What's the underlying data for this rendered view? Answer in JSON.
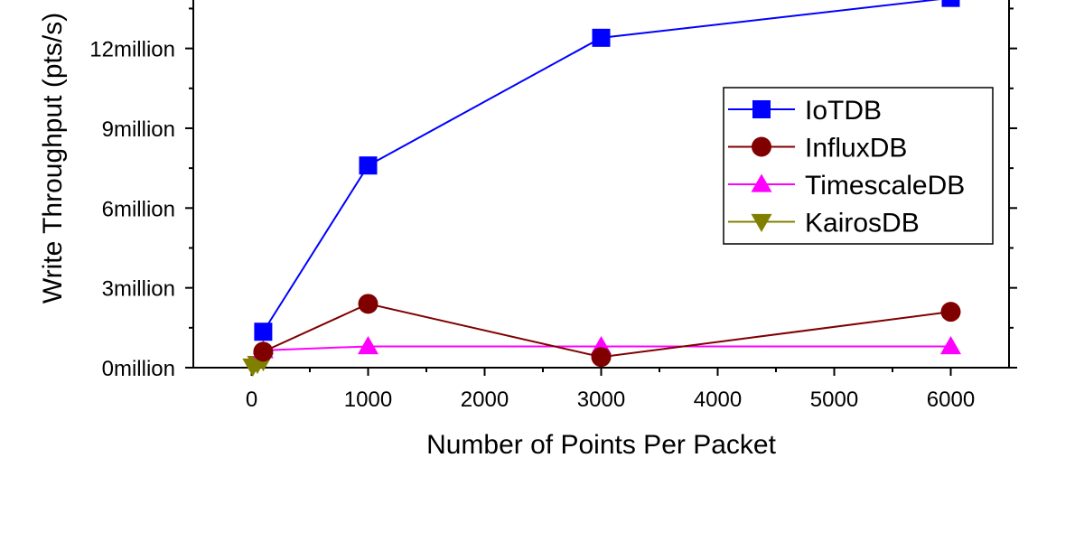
{
  "chart_data": {
    "type": "line",
    "xlabel": "Number of Points Per Packet",
    "ylabel": "Write Throughput (pts/s)",
    "xlim": [
      -500,
      6500
    ],
    "ylim": [
      0,
      14500000
    ],
    "x_ticks": [
      0,
      1000,
      2000,
      3000,
      4000,
      5000,
      6000
    ],
    "x_tick_labels": [
      "0",
      "1000",
      "2000",
      "3000",
      "4000",
      "5000",
      "6000"
    ],
    "y_ticks": [
      0,
      3000000,
      6000000,
      9000000,
      12000000
    ],
    "y_tick_labels": [
      "0million",
      "3million",
      "6million",
      "9million",
      "12million"
    ],
    "legend_position": "right",
    "series": [
      {
        "name": "IoTDB",
        "color": "#0000ff",
        "marker": "square",
        "x": [
          100,
          1000,
          3000,
          6000
        ],
        "y": [
          1350000,
          7600000,
          12400000,
          13900000
        ]
      },
      {
        "name": "InfluxDB",
        "color": "#800000",
        "marker": "circle",
        "x": [
          100,
          1000,
          3000,
          6000
        ],
        "y": [
          600000,
          2400000,
          400000,
          2100000
        ]
      },
      {
        "name": "TimescaleDB",
        "color": "#ff00ff",
        "marker": "triangle-up",
        "x": [
          100,
          1000,
          3000,
          6000
        ],
        "y": [
          650000,
          800000,
          800000,
          800000
        ]
      },
      {
        "name": "KairosDB",
        "color": "#808000",
        "marker": "triangle-down",
        "x": [
          10,
          50,
          100
        ],
        "y": [
          50000,
          150000,
          250000
        ]
      }
    ]
  }
}
